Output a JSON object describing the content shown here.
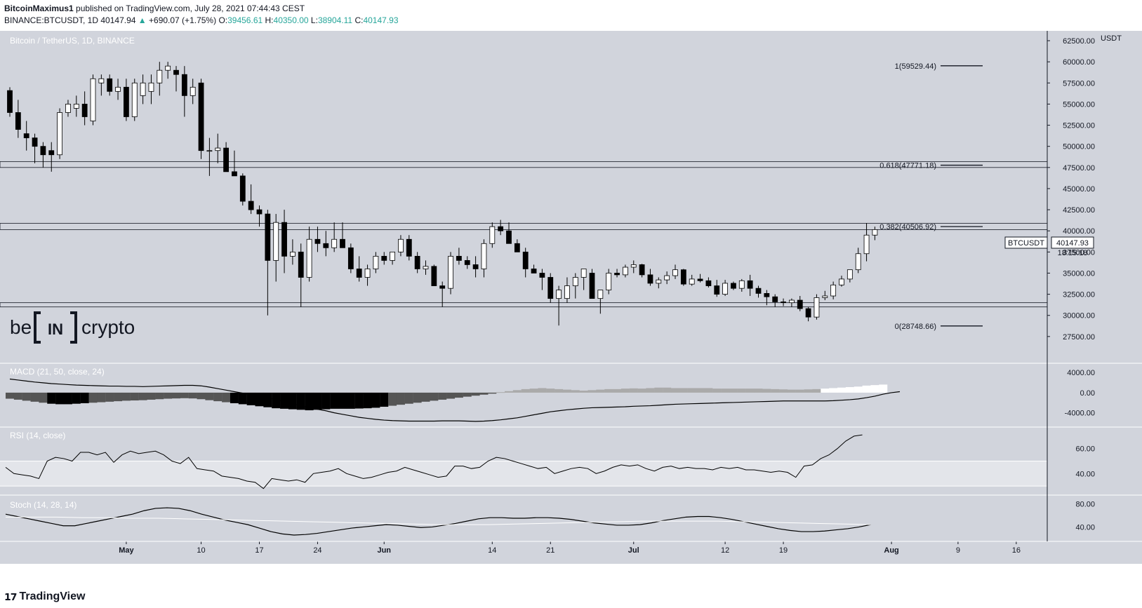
{
  "header": {
    "author": "BitcoinMaximus1",
    "published": "published on TradingView.com, July 28, 2021 07:44:43 CEST",
    "symbol_line": "BINANCE:BTCUSDT, 1D",
    "last": "40147.94",
    "change": "+690.07 (+1.75%)",
    "O": "39456.61",
    "H": "40350.00",
    "L": "38904.11",
    "C": "40147.93",
    "O_label": "O:",
    "H_label": "H:",
    "L_label": "L:",
    "C_label": "C:"
  },
  "main_title": "Bitcoin / TetherUS, 1D, BINANCE",
  "price_axis_unit": "USDT",
  "price_label": {
    "symbol": "BTCUSDT",
    "price": "40147.93",
    "countdown": "18:15:18"
  },
  "watermark": {
    "be": "be",
    "in": "IN",
    "crypto": "crypto"
  },
  "footer": {
    "brand": "TradingView"
  },
  "colors": {
    "background": "#d1d4dc",
    "bull_body": "#ffffff",
    "bear_body": "#000000",
    "grid_line": "#131722",
    "white_text": "#ffffff"
  },
  "chart_data": {
    "type": "candlestick",
    "title": "Bitcoin / TetherUS, 1D, BINANCE",
    "ylim": [
      25000,
      63000
    ],
    "y_ticks": [
      "27500.00",
      "30000.00",
      "32500.00",
      "35000.00",
      "37500.00",
      "40000.00",
      "42500.00",
      "45000.00",
      "47500.00",
      "50000.00",
      "52500.00",
      "55000.00",
      "57500.00",
      "60000.00",
      "62500.00"
    ],
    "x_ticks": [
      {
        "label": "May",
        "day": 14
      },
      {
        "label": "10",
        "day": 23
      },
      {
        "label": "17",
        "day": 30
      },
      {
        "label": "24",
        "day": 37
      },
      {
        "label": "Jun",
        "day": 45
      },
      {
        "label": "14",
        "day": 58
      },
      {
        "label": "21",
        "day": 65
      },
      {
        "label": "Jul",
        "day": 75
      },
      {
        "label": "12",
        "day": 86
      },
      {
        "label": "19",
        "day": 93
      },
      {
        "label": "Aug",
        "day": 106
      },
      {
        "label": "9",
        "day": 114
      },
      {
        "label": "16",
        "day": 121
      }
    ],
    "x_domain_days": [
      0,
      126
    ],
    "candles": [
      {
        "o": 56600,
        "h": 57000,
        "l": 53500,
        "c": 54000
      },
      {
        "o": 54000,
        "h": 55500,
        "l": 51000,
        "c": 52000
      },
      {
        "o": 51500,
        "h": 53000,
        "l": 49500,
        "c": 51000
      },
      {
        "o": 51000,
        "h": 51500,
        "l": 48000,
        "c": 50000
      },
      {
        "o": 50000,
        "h": 50500,
        "l": 47500,
        "c": 49000
      },
      {
        "o": 49500,
        "h": 50500,
        "l": 47000,
        "c": 49000
      },
      {
        "o": 49000,
        "h": 54500,
        "l": 48500,
        "c": 54000
      },
      {
        "o": 54000,
        "h": 55500,
        "l": 53500,
        "c": 55000
      },
      {
        "o": 54500,
        "h": 56000,
        "l": 53500,
        "c": 55000
      },
      {
        "o": 55000,
        "h": 56500,
        "l": 52500,
        "c": 53500
      },
      {
        "o": 53000,
        "h": 58500,
        "l": 52500,
        "c": 58000
      },
      {
        "o": 57500,
        "h": 58500,
        "l": 56000,
        "c": 58000
      },
      {
        "o": 58000,
        "h": 58500,
        "l": 56000,
        "c": 56500
      },
      {
        "o": 56500,
        "h": 58000,
        "l": 55500,
        "c": 57000
      },
      {
        "o": 57000,
        "h": 58000,
        "l": 53000,
        "c": 53500
      },
      {
        "o": 53500,
        "h": 58000,
        "l": 53000,
        "c": 57500
      },
      {
        "o": 56000,
        "h": 58500,
        "l": 55000,
        "c": 57500
      },
      {
        "o": 56500,
        "h": 58500,
        "l": 55000,
        "c": 57500
      },
      {
        "o": 57500,
        "h": 60000,
        "l": 56000,
        "c": 59000
      },
      {
        "o": 59000,
        "h": 60000,
        "l": 58000,
        "c": 59500
      },
      {
        "o": 59000,
        "h": 59500,
        "l": 56500,
        "c": 58500
      },
      {
        "o": 58500,
        "h": 59500,
        "l": 53500,
        "c": 56000
      },
      {
        "o": 56000,
        "h": 58000,
        "l": 55000,
        "c": 57000
      },
      {
        "o": 57500,
        "h": 58000,
        "l": 48500,
        "c": 49500
      },
      {
        "o": 49500,
        "h": 51000,
        "l": 46500,
        "c": 49500
      },
      {
        "o": 49500,
        "h": 51500,
        "l": 48000,
        "c": 49800
      },
      {
        "o": 49800,
        "h": 50500,
        "l": 47000,
        "c": 47000
      },
      {
        "o": 47000,
        "h": 49500,
        "l": 46500,
        "c": 46500
      },
      {
        "o": 46500,
        "h": 46800,
        "l": 43000,
        "c": 43500
      },
      {
        "o": 43500,
        "h": 45500,
        "l": 42000,
        "c": 42500
      },
      {
        "o": 42500,
        "h": 43000,
        "l": 40500,
        "c": 42000
      },
      {
        "o": 42000,
        "h": 42500,
        "l": 30000,
        "c": 36500
      },
      {
        "o": 36500,
        "h": 42000,
        "l": 34000,
        "c": 41000
      },
      {
        "o": 41000,
        "h": 42500,
        "l": 35000,
        "c": 37000
      },
      {
        "o": 37000,
        "h": 39000,
        "l": 36000,
        "c": 37500
      },
      {
        "o": 37500,
        "h": 38500,
        "l": 31000,
        "c": 34500
      },
      {
        "o": 34500,
        "h": 40500,
        "l": 34000,
        "c": 39000
      },
      {
        "o": 39000,
        "h": 40500,
        "l": 37500,
        "c": 38500
      },
      {
        "o": 38500,
        "h": 40000,
        "l": 37000,
        "c": 38000
      },
      {
        "o": 38000,
        "h": 41000,
        "l": 37500,
        "c": 39000
      },
      {
        "o": 39000,
        "h": 41000,
        "l": 38000,
        "c": 38000
      },
      {
        "o": 38000,
        "h": 38500,
        "l": 35000,
        "c": 35500
      },
      {
        "o": 35500,
        "h": 37000,
        "l": 34000,
        "c": 34500
      },
      {
        "o": 34500,
        "h": 36000,
        "l": 33500,
        "c": 35500
      },
      {
        "o": 35500,
        "h": 37500,
        "l": 35000,
        "c": 37000
      },
      {
        "o": 37000,
        "h": 37500,
        "l": 36000,
        "c": 36500
      },
      {
        "o": 36500,
        "h": 37500,
        "l": 36000,
        "c": 37500
      },
      {
        "o": 37500,
        "h": 39500,
        "l": 37000,
        "c": 39000
      },
      {
        "o": 39000,
        "h": 39500,
        "l": 36500,
        "c": 37000
      },
      {
        "o": 37000,
        "h": 37500,
        "l": 35000,
        "c": 35500
      },
      {
        "o": 35500,
        "h": 36500,
        "l": 34800,
        "c": 35800
      },
      {
        "o": 35800,
        "h": 36000,
        "l": 33500,
        "c": 33500
      },
      {
        "o": 33500,
        "h": 34000,
        "l": 31000,
        "c": 33200
      },
      {
        "o": 33200,
        "h": 37500,
        "l": 32500,
        "c": 37000
      },
      {
        "o": 37000,
        "h": 38000,
        "l": 36000,
        "c": 36500
      },
      {
        "o": 36500,
        "h": 37000,
        "l": 35500,
        "c": 36000
      },
      {
        "o": 36000,
        "h": 37000,
        "l": 34500,
        "c": 35500
      },
      {
        "o": 35500,
        "h": 39000,
        "l": 34500,
        "c": 38500
      },
      {
        "o": 38500,
        "h": 41000,
        "l": 38000,
        "c": 40500
      },
      {
        "o": 40500,
        "h": 41300,
        "l": 39500,
        "c": 40000
      },
      {
        "o": 40000,
        "h": 41000,
        "l": 38500,
        "c": 38500
      },
      {
        "o": 38500,
        "h": 39000,
        "l": 37500,
        "c": 37500
      },
      {
        "o": 37500,
        "h": 38000,
        "l": 34500,
        "c": 35500
      },
      {
        "o": 35500,
        "h": 36000,
        "l": 35000,
        "c": 35000
      },
      {
        "o": 35000,
        "h": 35500,
        "l": 33000,
        "c": 34500
      },
      {
        "o": 34500,
        "h": 35000,
        "l": 31500,
        "c": 32000
      },
      {
        "o": 32000,
        "h": 33500,
        "l": 28800,
        "c": 33000
      },
      {
        "o": 32000,
        "h": 34500,
        "l": 31500,
        "c": 33500
      },
      {
        "o": 33500,
        "h": 35000,
        "l": 32000,
        "c": 34500
      },
      {
        "o": 34500,
        "h": 35500,
        "l": 33000,
        "c": 35500
      },
      {
        "o": 35000,
        "h": 35500,
        "l": 32000,
        "c": 32000
      },
      {
        "o": 32000,
        "h": 33000,
        "l": 30200,
        "c": 33000
      },
      {
        "o": 33000,
        "h": 35500,
        "l": 32500,
        "c": 35000
      },
      {
        "o": 35000,
        "h": 35500,
        "l": 34500,
        "c": 34800
      },
      {
        "o": 34800,
        "h": 36000,
        "l": 34500,
        "c": 35700
      },
      {
        "o": 35700,
        "h": 36500,
        "l": 35000,
        "c": 36000
      },
      {
        "o": 36000,
        "h": 36100,
        "l": 34500,
        "c": 34800
      },
      {
        "o": 34800,
        "h": 35500,
        "l": 33500,
        "c": 33800
      },
      {
        "o": 33800,
        "h": 34500,
        "l": 33200,
        "c": 34200
      },
      {
        "o": 34200,
        "h": 35200,
        "l": 33700,
        "c": 34700
      },
      {
        "o": 34700,
        "h": 36000,
        "l": 34300,
        "c": 35400
      },
      {
        "o": 35400,
        "h": 35500,
        "l": 33500,
        "c": 33700
      },
      {
        "o": 33700,
        "h": 34800,
        "l": 33500,
        "c": 34300
      },
      {
        "o": 34300,
        "h": 34900,
        "l": 33900,
        "c": 34100
      },
      {
        "o": 34100,
        "h": 34500,
        "l": 33300,
        "c": 33500
      },
      {
        "o": 33500,
        "h": 34200,
        "l": 32200,
        "c": 32500
      },
      {
        "o": 32500,
        "h": 34200,
        "l": 32300,
        "c": 33800
      },
      {
        "o": 33800,
        "h": 34000,
        "l": 33000,
        "c": 33200
      },
      {
        "o": 33200,
        "h": 34300,
        "l": 32800,
        "c": 34100
      },
      {
        "o": 34100,
        "h": 34800,
        "l": 32300,
        "c": 33200
      },
      {
        "o": 33200,
        "h": 33500,
        "l": 32100,
        "c": 32600
      },
      {
        "o": 32600,
        "h": 33000,
        "l": 31200,
        "c": 32200
      },
      {
        "o": 32200,
        "h": 32500,
        "l": 31000,
        "c": 31600
      },
      {
        "o": 31600,
        "h": 32000,
        "l": 31100,
        "c": 31500
      },
      {
        "o": 31500,
        "h": 32000,
        "l": 31000,
        "c": 31800
      },
      {
        "o": 31800,
        "h": 32300,
        "l": 30500,
        "c": 30800
      },
      {
        "o": 30800,
        "h": 31000,
        "l": 29300,
        "c": 29800
      },
      {
        "o": 29800,
        "h": 32500,
        "l": 29500,
        "c": 32100
      },
      {
        "o": 32100,
        "h": 32900,
        "l": 31800,
        "c": 32300
      },
      {
        "o": 32300,
        "h": 34000,
        "l": 31900,
        "c": 33600
      },
      {
        "o": 33600,
        "h": 34700,
        "l": 33400,
        "c": 34300
      },
      {
        "o": 34300,
        "h": 35400,
        "l": 33900,
        "c": 35400
      },
      {
        "o": 35400,
        "h": 38000,
        "l": 35000,
        "c": 37300
      },
      {
        "o": 37300,
        "h": 40900,
        "l": 36400,
        "c": 39500
      },
      {
        "o": 39500,
        "h": 40500,
        "l": 38900,
        "c": 40150
      }
    ],
    "levels": [
      {
        "label": "1(59529.44)",
        "value": 59529.44
      },
      {
        "label": "0.618(47771.18)",
        "value": 47771.18
      },
      {
        "label": "0.382(40506.92)",
        "value": 40506.92
      },
      {
        "label": "0(28748.66)",
        "value": 28748.66
      }
    ],
    "zones": [
      {
        "from": 47500,
        "to": 48200
      },
      {
        "from": 40150,
        "to": 40900
      },
      {
        "from": 31000,
        "to": 31500
      }
    ],
    "macd": {
      "title": "MACD (21, 50, close, 24)",
      "ylim": [
        -6000,
        5000
      ],
      "y_ticks": [
        "4000.00",
        "0.00",
        "-4000.00"
      ],
      "hist": [
        -1200,
        -1400,
        -1600,
        -1800,
        -2000,
        -2200,
        -2300,
        -2300,
        -2200,
        -2100,
        -2000,
        -1900,
        -1800,
        -1700,
        -1600,
        -1550,
        -1500,
        -1400,
        -1300,
        -1200,
        -1150,
        -1100,
        -1150,
        -1300,
        -1500,
        -1700,
        -1900,
        -2100,
        -2300,
        -2500,
        -2700,
        -2900,
        -3100,
        -3200,
        -3300,
        -3400,
        -3500,
        -3400,
        -3300,
        -3200,
        -3200,
        -3200,
        -3150,
        -3100,
        -3000,
        -2800,
        -2600,
        -2400,
        -2200,
        -2000,
        -1800,
        -1600,
        -1400,
        -1200,
        -1000,
        -800,
        -600,
        -400,
        -200,
        100,
        300,
        500,
        700,
        800,
        900,
        800,
        700,
        600,
        500,
        400,
        500,
        600,
        700,
        700,
        800,
        850,
        800,
        900,
        1000,
        1000,
        900,
        900,
        900,
        900,
        900,
        800,
        800,
        800,
        800,
        800,
        800,
        750,
        700,
        650,
        600,
        600,
        650,
        700,
        800,
        900,
        1000,
        1100,
        1200,
        1400,
        1500,
        1600
      ],
      "macd_line": [
        2700,
        2500,
        2300,
        2100,
        1950,
        1800,
        1700,
        1600,
        1500,
        1450,
        1400,
        1350,
        1300,
        1300,
        1250,
        1250,
        1200,
        1250,
        1300,
        1350,
        1400,
        1450,
        1450,
        1350,
        1100,
        800,
        500,
        200,
        -100,
        -400,
        -700,
        -1000,
        -1400,
        -1800,
        -2200,
        -2600,
        -3000,
        -3300,
        -3600,
        -4000,
        -4300,
        -4600,
        -4900,
        -5100,
        -5300,
        -5450,
        -5550,
        -5600,
        -5650,
        -5650,
        -5650,
        -5650,
        -5600,
        -5600,
        -5600,
        -5650,
        -5700,
        -5650,
        -5550,
        -5400,
        -5200,
        -5000,
        -4700,
        -4400,
        -4100,
        -3800,
        -3600,
        -3400,
        -3250,
        -3100,
        -3000,
        -2950,
        -2900,
        -2850,
        -2800,
        -2700,
        -2650,
        -2600,
        -2500,
        -2400,
        -2300,
        -2250,
        -2200,
        -2150,
        -2100,
        -2050,
        -2000,
        -1950,
        -1900,
        -1850,
        -1800,
        -1750,
        -1700,
        -1650,
        -1650,
        -1650,
        -1650,
        -1650,
        -1650,
        -1600,
        -1500,
        -1400,
        -1250,
        -1000,
        -700,
        -300,
        0,
        200
      ]
    },
    "rsi": {
      "title": "RSI (14, close)",
      "ylim": [
        25,
        75
      ],
      "y_ticks": [
        "60.00",
        "40.00"
      ],
      "band": [
        30,
        50
      ],
      "values": [
        45,
        40,
        39,
        38,
        36,
        50,
        53,
        52,
        50,
        57,
        57,
        55,
        57,
        49,
        55,
        58,
        56,
        57,
        58,
        55,
        50,
        48,
        53,
        44,
        43,
        42,
        38,
        37,
        36,
        34,
        33,
        28,
        36,
        35,
        34,
        35,
        33,
        40,
        41,
        42,
        44,
        40,
        38,
        36,
        37,
        39,
        41,
        42,
        45,
        43,
        41,
        39,
        37,
        38,
        46,
        46,
        44,
        45,
        50,
        53,
        52,
        50,
        48,
        46,
        44,
        45,
        40,
        42,
        44,
        45,
        44,
        40,
        42,
        45,
        47,
        46,
        47,
        44,
        42,
        45,
        46,
        44,
        45,
        44,
        44,
        43,
        45,
        44,
        45,
        43,
        43,
        42,
        41,
        42,
        41,
        37,
        46,
        47,
        52,
        55,
        60,
        66,
        70,
        71
      ]
    },
    "stoch": {
      "title": "Stoch (14, 28, 14)",
      "ylim": [
        20,
        90
      ],
      "y_ticks": [
        "80.00",
        "40.00"
      ],
      "k": [
        62,
        58,
        54,
        50,
        46,
        42,
        42,
        46,
        50,
        54,
        58,
        62,
        68,
        72,
        73,
        72,
        68,
        62,
        57,
        52,
        48,
        44,
        38,
        32,
        28,
        26,
        27,
        29,
        32,
        35,
        38,
        40,
        42,
        44,
        43,
        41,
        39,
        40,
        43,
        46,
        50,
        54,
        56,
        56,
        55,
        55,
        56,
        56,
        55,
        53,
        50,
        47,
        45,
        43,
        43,
        44,
        47,
        51,
        54,
        57,
        58,
        58,
        56,
        53,
        49,
        45,
        41,
        37,
        34,
        32,
        32,
        33,
        35,
        37,
        40,
        44
      ],
      "d": [
        57,
        57,
        57,
        56,
        56,
        55,
        55,
        54,
        53,
        52,
        51,
        50,
        49,
        48,
        47,
        46,
        45,
        44,
        44,
        44,
        45,
        46,
        47,
        48,
        49,
        50,
        50,
        50,
        50,
        49,
        48,
        47,
        46,
        45,
        44
      ]
    }
  }
}
